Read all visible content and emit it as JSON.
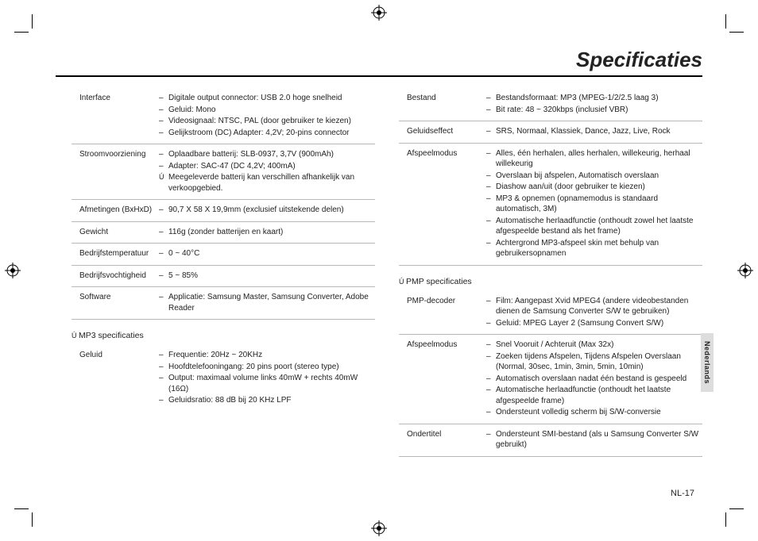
{
  "title": "Specificaties",
  "side_tab": "Nederlands",
  "footer": "NL-17",
  "left_specs": [
    {
      "label": "Interface",
      "items": [
        "Digitale output connector: USB 2.0 hoge snelheid",
        "Geluid: Mono",
        "Videosignaal: NTSC, PAL (door gebruiker te kiezen)",
        "Gelijkstroom (DC) Adapter: 4,2V; 20-pins connector"
      ]
    },
    {
      "label": "Stroomvoorziening",
      "items": [
        "Oplaadbare batterij: SLB-0937, 3,7V (900mAh)",
        "Adapter: SAC-47 (DC 4,2V; 400mA)"
      ],
      "note": "Meegeleverde batterij kan verschillen afhankelijk van verkoopgebied."
    },
    {
      "label": "Afmetingen (BxHxD)",
      "items": [
        "90,7 X 58 X 19,9mm (exclusief uitstekende delen)"
      ]
    },
    {
      "label": "Gewicht",
      "items": [
        "116g (zonder batterijen en kaart)"
      ]
    },
    {
      "label": "Bedrijfstemperatuur",
      "items": [
        "0 ~ 40°C"
      ]
    },
    {
      "label": "Bedrijfsvochtigheid",
      "items": [
        "5 ~ 85%"
      ]
    },
    {
      "label": "Software",
      "items": [
        "Applicatie: Samsung Master, Samsung Converter, Adobe Reader"
      ]
    }
  ],
  "left_section_header": "MP3 specificaties",
  "left_section_specs": [
    {
      "label": "Geluid",
      "items": [
        "Frequentie: 20Hz ~ 20KHz",
        "Hoofdtelefooningang: 20 pins poort (stereo type)",
        "Output: maximaal volume links 40mW + rechts 40mW (16Ω)",
        "Geluidsratio: 88 dB bij 20 KHz LPF"
      ]
    }
  ],
  "right_specs": [
    {
      "label": "Bestand",
      "items": [
        "Bestandsformaat: MP3 (MPEG-1/2/2.5 laag 3)",
        "Bit rate: 48 ~ 320kbps (inclusief VBR)"
      ]
    },
    {
      "label": "Geluidseffect",
      "items": [
        "SRS, Normaal, Klassiek, Dance, Jazz, Live, Rock"
      ]
    },
    {
      "label": "Afspeelmodus",
      "items": [
        "Alles, één herhalen, alles herhalen, willekeurig, herhaal willekeurig",
        "Overslaan bij afspelen, Automatisch overslaan",
        "Diashow aan/uit (door gebruiker te kiezen)",
        "MP3 & opnemen (opnamemodus is standaard automatisch, 3M)",
        "Automatische herlaadfunctie (onthoudt zowel het laatste afgespeelde bestand als het frame)",
        "Achtergrond MP3-afspeel skin met behulp van gebruikersopnamen"
      ]
    }
  ],
  "right_section_header": "PMP specificaties",
  "right_section_specs": [
    {
      "label": "PMP-decoder",
      "items": [
        "Film: Aangepast Xvid MPEG4 (andere videobestanden dienen de Samsung Converter S/W te gebruiken)",
        "Geluid: MPEG Layer 2 (Samsung Convert S/W)"
      ]
    },
    {
      "label": "Afspeelmodus",
      "items": [
        "Snel Vooruit / Achteruit (Max 32x)",
        "Zoeken tijdens Afspelen, Tijdens Afspelen Overslaan (Normal, 30sec, 1min, 3min, 5min, 10min)",
        " Automatisch overslaan nadat één bestand is gespeeld",
        "Automatische herlaadfunctie (onthoudt het laatste afgespeelde frame)",
        "Ondersteunt volledig scherm bij S/W-conversie"
      ]
    },
    {
      "label": "Ondertitel",
      "items": [
        "Ondersteunt SMI-bestand (als u Samsung Converter S/W gebruikt)"
      ]
    }
  ]
}
